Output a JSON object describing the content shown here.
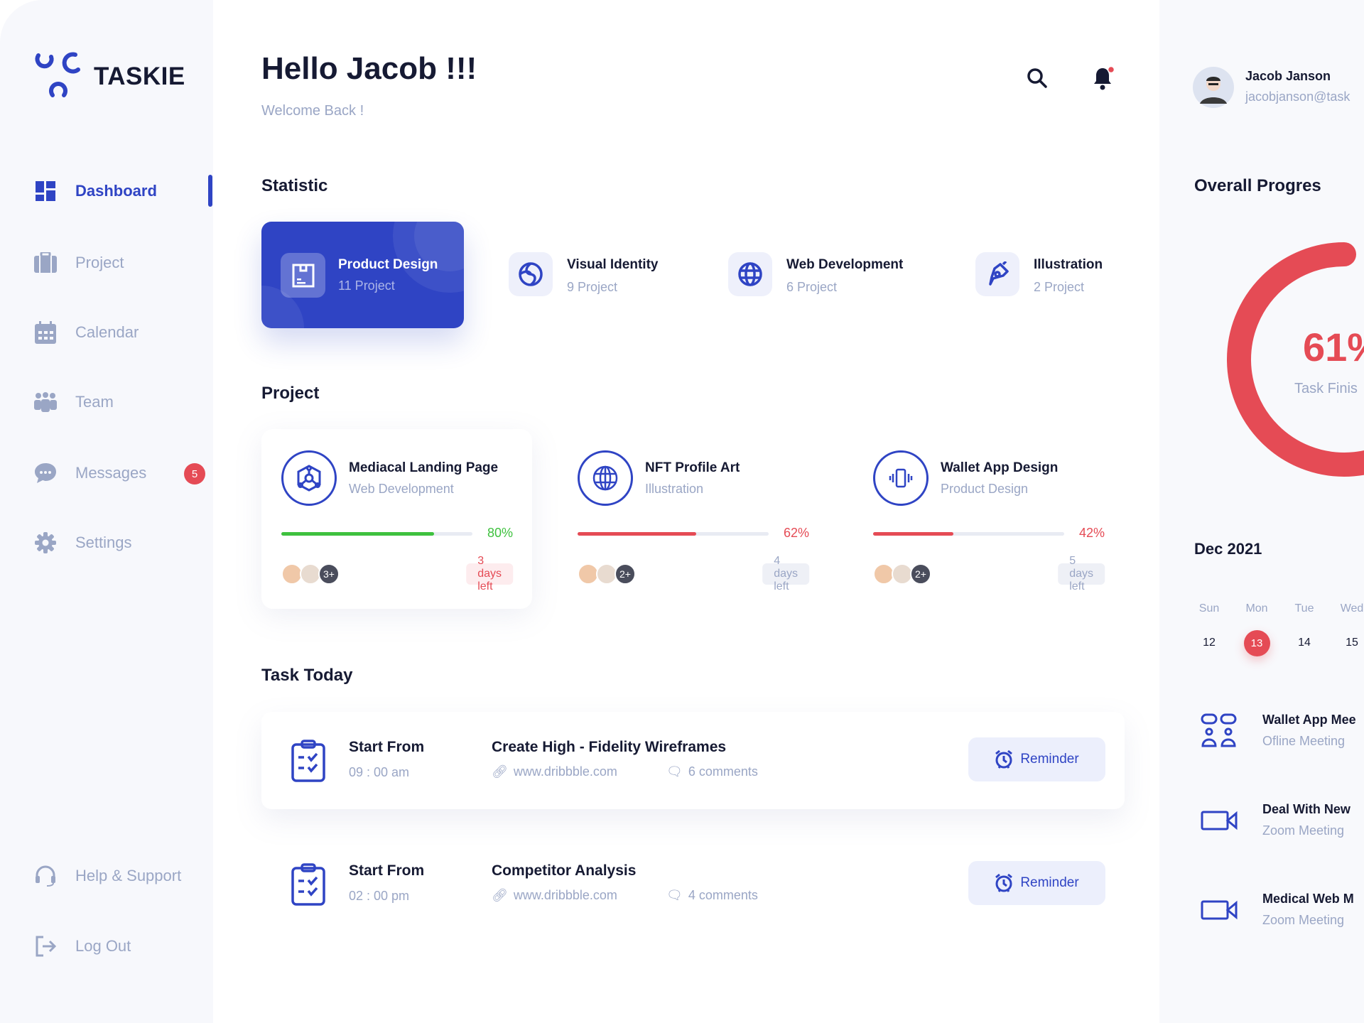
{
  "brand": {
    "name": "TASKIE",
    "accent": "#2f44c4"
  },
  "sidebar": {
    "items": [
      {
        "label": "Dashboard",
        "icon": "grid-icon",
        "active": true
      },
      {
        "label": "Project",
        "icon": "briefcase-icon"
      },
      {
        "label": "Calendar",
        "icon": "calendar-icon"
      },
      {
        "label": "Team",
        "icon": "team-icon"
      },
      {
        "label": "Messages",
        "icon": "chat-icon",
        "badge": "5"
      },
      {
        "label": "Settings",
        "icon": "gear-icon"
      }
    ],
    "bottom": [
      {
        "label": "Help & Support",
        "icon": "headset-icon"
      },
      {
        "label": "Log Out",
        "icon": "logout-icon"
      }
    ]
  },
  "header": {
    "title": "Hello Jacob !!!",
    "subtitle": "Welcome Back !"
  },
  "user": {
    "name": "Jacob Janson",
    "email": "jacobjanson@task"
  },
  "statistic": {
    "title": "Statistic",
    "items": [
      {
        "title": "Product Design",
        "count": "11 Project",
        "icon": "box-icon",
        "active": true
      },
      {
        "title": "Visual Identity",
        "count": "9 Project",
        "icon": "swirl-icon"
      },
      {
        "title": "Web Development",
        "count": "6 Project",
        "icon": "globe-icon"
      },
      {
        "title": "Illustration",
        "count": "2 Project",
        "icon": "pen-tool-icon"
      }
    ]
  },
  "project": {
    "title": "Project",
    "items": [
      {
        "title": "Mediacal Landing Page",
        "category": "Web Development",
        "progress": 80,
        "progress_label": "80%",
        "color": "#3ec13e",
        "more": "3+",
        "days": "3 days left",
        "urgent": true
      },
      {
        "title": "NFT Profile Art",
        "category": "Illustration",
        "progress": 62,
        "progress_label": "62%",
        "color": "#e54b55",
        "more": "2+",
        "days": "4 days left"
      },
      {
        "title": "Wallet App Design",
        "category": "Product Design",
        "progress": 42,
        "progress_label": "42%",
        "color": "#e54b55",
        "more": "2+",
        "days": "5 days left"
      }
    ]
  },
  "tasks": {
    "title": "Task Today",
    "items": [
      {
        "start_label": "Start From",
        "time": "09 : 00 am",
        "title": "Create High - Fidelity Wireframes",
        "link": "www.dribbble.com",
        "comments": "6 comments",
        "button": "Reminder"
      },
      {
        "start_label": "Start From",
        "time": "02 : 00 pm",
        "title": "Competitor Analysis",
        "link": "www.dribbble.com",
        "comments": "4 comments",
        "button": "Reminder"
      }
    ]
  },
  "progress": {
    "title": "Overall Progres",
    "value": 61,
    "value_label": "61%",
    "caption": "Task Finis",
    "color": "#e54b55"
  },
  "calendar": {
    "month": "Dec 2021",
    "days": [
      {
        "d": "Sun",
        "n": "12"
      },
      {
        "d": "Mon",
        "n": "13",
        "selected": true
      },
      {
        "d": "Tue",
        "n": "14"
      },
      {
        "d": "Wed",
        "n": "15"
      }
    ]
  },
  "events": [
    {
      "title": "Wallet App Mee",
      "sub": "Ofline Meeting",
      "icon": "meeting-icon"
    },
    {
      "title": "Deal With New",
      "sub": "Zoom Meeting",
      "icon": "video-icon"
    },
    {
      "title": "Medical Web M",
      "sub": "Zoom Meeting",
      "icon": "video-icon"
    }
  ]
}
